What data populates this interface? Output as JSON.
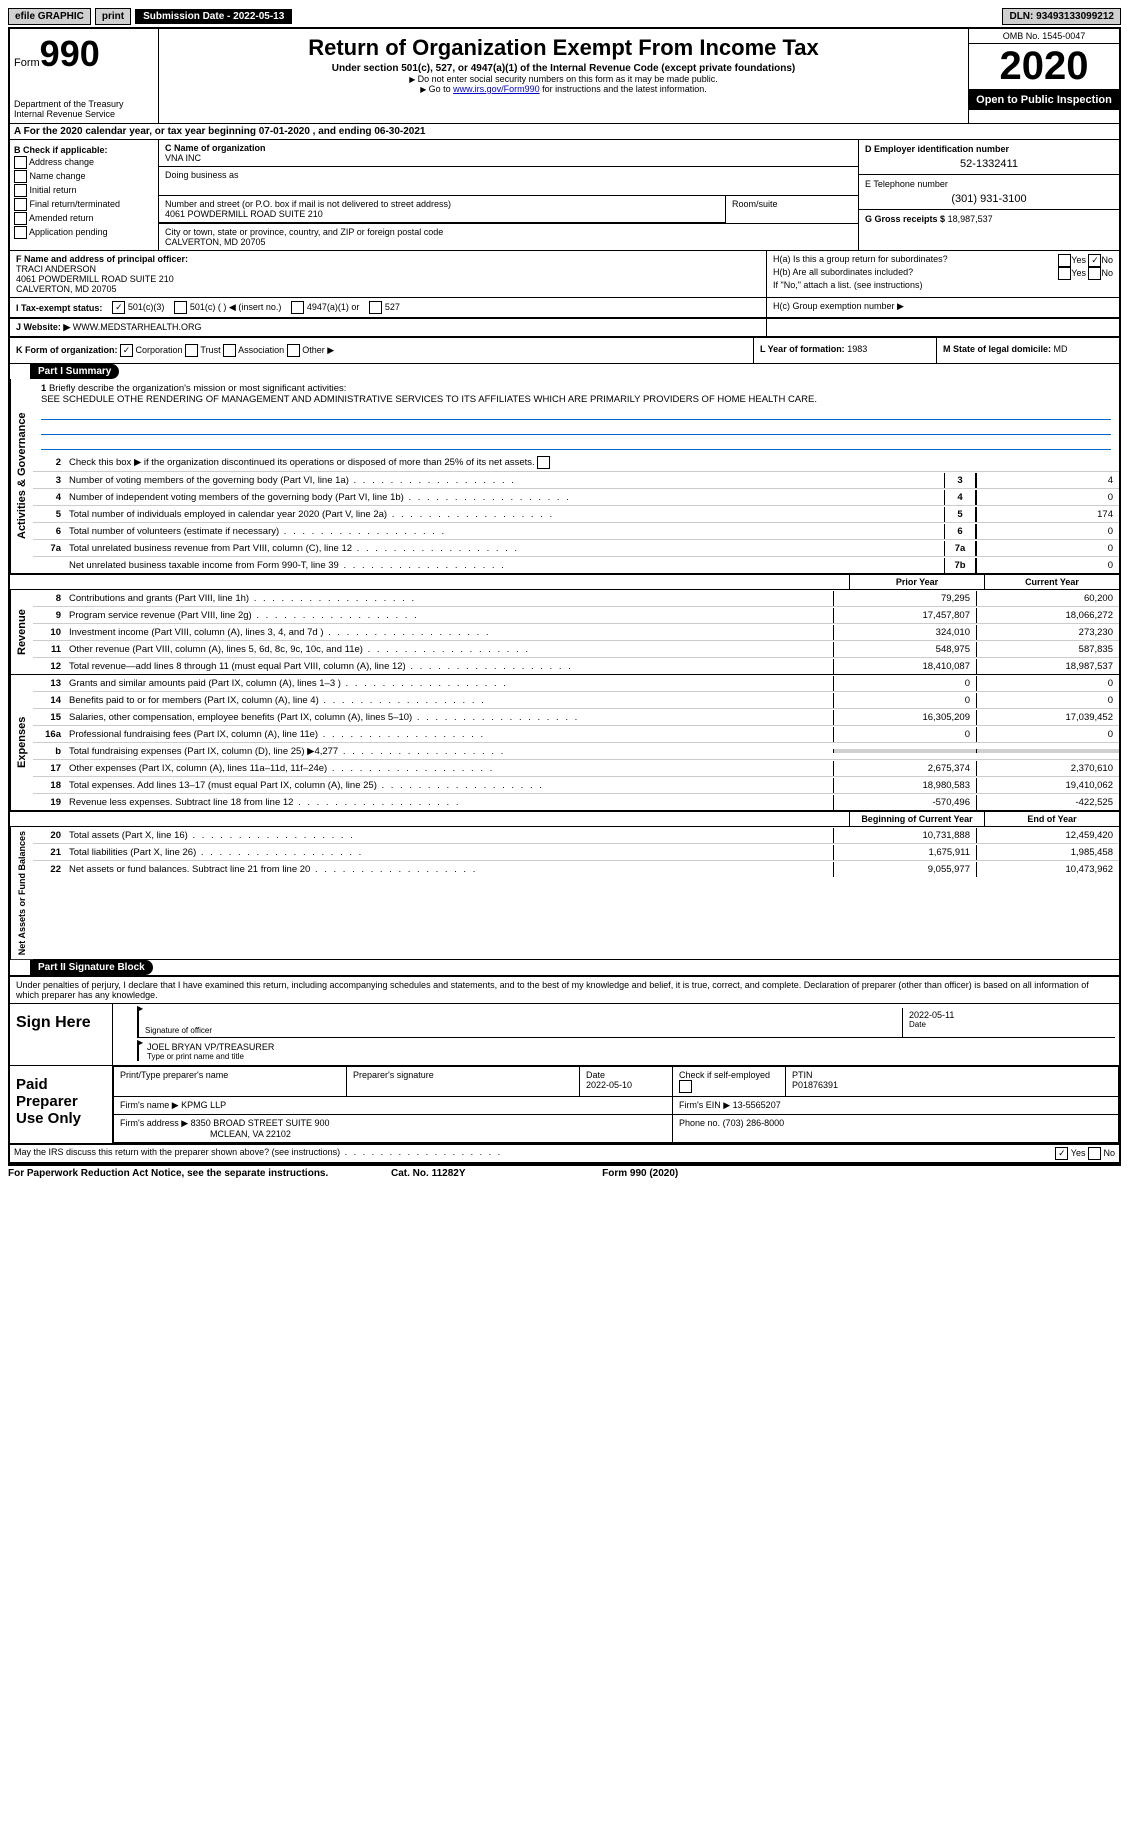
{
  "topbar": {
    "efile_label": "efile GRAPHIC",
    "print_label": "print",
    "submission_label": "Submission Date - 2022-05-13",
    "dln": "DLN: 93493133099212"
  },
  "header": {
    "form_prefix": "Form",
    "form_number": "990",
    "dept1": "Department of the Treasury",
    "dept2": "Internal Revenue Service",
    "title": "Return of Organization Exempt From Income Tax",
    "subtitle": "Under section 501(c), 527, or 4947(a)(1) of the Internal Revenue Code (except private foundations)",
    "note1": "Do not enter social security numbers on this form as it may be made public.",
    "note2_prefix": "Go to ",
    "note2_link": "www.irs.gov/Form990",
    "note2_suffix": " for instructions and the latest information.",
    "omb": "OMB No. 1545-0047",
    "year": "2020",
    "open_public": "Open to Public Inspection"
  },
  "row_a": "A For the 2020 calendar year, or tax year beginning 07-01-2020   , and ending 06-30-2021",
  "section_b": {
    "header": "B Check if applicable:",
    "items": [
      "Address change",
      "Name change",
      "Initial return",
      "Final return/terminated",
      "Amended return",
      "Application pending"
    ]
  },
  "section_c": {
    "name_label": "C Name of organization",
    "name_value": "VNA INC",
    "dba_label": "Doing business as",
    "street_label": "Number and street (or P.O. box if mail is not delivered to street address)",
    "street_value": "4061 POWDERMILL ROAD SUITE 210",
    "suite_label": "Room/suite",
    "city_label": "City or town, state or province, country, and ZIP or foreign postal code",
    "city_value": "CALVERTON, MD  20705"
  },
  "section_de": {
    "d_label": "D Employer identification number",
    "d_value": "52-1332411",
    "e_label": "E Telephone number",
    "e_value": "(301) 931-3100",
    "g_label": "G Gross receipts $",
    "g_value": "18,987,537"
  },
  "section_f": {
    "label": "F  Name and address of principal officer:",
    "name": "TRACI ANDERSON",
    "addr1": "4061 POWDERMILL ROAD SUITE 210",
    "addr2": "CALVERTON, MD  20705"
  },
  "section_h": {
    "ha_label": "H(a)  Is this a group return for subordinates?",
    "hb_label": "H(b)  Are all subordinates included?",
    "hb_note": "If \"No,\" attach a list. (see instructions)",
    "hc_label": "H(c)  Group exemption number ▶"
  },
  "row_i": {
    "label": "I   Tax-exempt status:",
    "opt1": "501(c)(3)",
    "opt2": "501(c) (  ) ◀ (insert no.)",
    "opt3": "4947(a)(1) or",
    "opt4": "527"
  },
  "row_j": {
    "label": "J   Website: ▶",
    "value": "WWW.MEDSTARHEALTH.ORG"
  },
  "row_k": {
    "label": "K Form of organization:",
    "opts": [
      "Corporation",
      "Trust",
      "Association",
      "Other ▶"
    ],
    "l_label": "L Year of formation:",
    "l_value": "1983",
    "m_label": "M State of legal domicile:",
    "m_value": "MD"
  },
  "part1": {
    "header": "Part I      Summary",
    "activities_label": "Activities & Governance",
    "line1_label": "Briefly describe the organization's mission or most significant activities:",
    "line1_text": "SEE SCHEDULE OTHE RENDERING OF MANAGEMENT AND ADMINISTRATIVE SERVICES TO ITS AFFILIATES WHICH ARE PRIMARILY PROVIDERS OF HOME HEALTH CARE.",
    "line2": "Check this box ▶       if the organization discontinued its operations or disposed of more than 25% of its net assets.",
    "lines_ag": [
      {
        "n": "3",
        "d": "Number of voting members of the governing body (Part VI, line 1a)",
        "b": "3",
        "v": "4"
      },
      {
        "n": "4",
        "d": "Number of independent voting members of the governing body (Part VI, line 1b)",
        "b": "4",
        "v": "0"
      },
      {
        "n": "5",
        "d": "Total number of individuals employed in calendar year 2020 (Part V, line 2a)",
        "b": "5",
        "v": "174"
      },
      {
        "n": "6",
        "d": "Total number of volunteers (estimate if necessary)",
        "b": "6",
        "v": "0"
      },
      {
        "n": "7a",
        "d": "Total unrelated business revenue from Part VIII, column (C), line 12",
        "b": "7a",
        "v": "0"
      },
      {
        "n": "",
        "d": "Net unrelated business taxable income from Form 990-T, line 39",
        "b": "7b",
        "v": "0"
      }
    ],
    "revenue_label": "Revenue",
    "expenses_label": "Expenses",
    "netassets_label": "Net Assets or Fund Balances",
    "prior_year": "Prior Year",
    "current_year": "Current Year",
    "lines_rev": [
      {
        "n": "8",
        "d": "Contributions and grants (Part VIII, line 1h)",
        "p": "79,295",
        "c": "60,200"
      },
      {
        "n": "9",
        "d": "Program service revenue (Part VIII, line 2g)",
        "p": "17,457,807",
        "c": "18,066,272"
      },
      {
        "n": "10",
        "d": "Investment income (Part VIII, column (A), lines 3, 4, and 7d )",
        "p": "324,010",
        "c": "273,230"
      },
      {
        "n": "11",
        "d": "Other revenue (Part VIII, column (A), lines 5, 6d, 8c, 9c, 10c, and 11e)",
        "p": "548,975",
        "c": "587,835"
      },
      {
        "n": "12",
        "d": "Total revenue—add lines 8 through 11 (must equal Part VIII, column (A), line 12)",
        "p": "18,410,087",
        "c": "18,987,537"
      }
    ],
    "lines_exp": [
      {
        "n": "13",
        "d": "Grants and similar amounts paid (Part IX, column (A), lines 1–3 )",
        "p": "0",
        "c": "0"
      },
      {
        "n": "14",
        "d": "Benefits paid to or for members (Part IX, column (A), line 4)",
        "p": "0",
        "c": "0"
      },
      {
        "n": "15",
        "d": "Salaries, other compensation, employee benefits (Part IX, column (A), lines 5–10)",
        "p": "16,305,209",
        "c": "17,039,452"
      },
      {
        "n": "16a",
        "d": "Professional fundraising fees (Part IX, column (A), line 11e)",
        "p": "0",
        "c": "0"
      },
      {
        "n": "b",
        "d": "Total fundraising expenses (Part IX, column (D), line 25) ▶4,277",
        "p": "",
        "c": "",
        "shaded": true
      },
      {
        "n": "17",
        "d": "Other expenses (Part IX, column (A), lines 11a–11d, 11f–24e)",
        "p": "2,675,374",
        "c": "2,370,610"
      },
      {
        "n": "18",
        "d": "Total expenses. Add lines 13–17 (must equal Part IX, column (A), line 25)",
        "p": "18,980,583",
        "c": "19,410,062"
      },
      {
        "n": "19",
        "d": "Revenue less expenses. Subtract line 18 from line 12",
        "p": "-570,496",
        "c": "-422,525"
      }
    ],
    "beg_year": "Beginning of Current Year",
    "end_year": "End of Year",
    "lines_na": [
      {
        "n": "20",
        "d": "Total assets (Part X, line 16)",
        "p": "10,731,888",
        "c": "12,459,420"
      },
      {
        "n": "21",
        "d": "Total liabilities (Part X, line 26)",
        "p": "1,675,911",
        "c": "1,985,458"
      },
      {
        "n": "22",
        "d": "Net assets or fund balances. Subtract line 21 from line 20",
        "p": "9,055,977",
        "c": "10,473,962"
      }
    ]
  },
  "part2": {
    "header": "Part II     Signature Block",
    "jurat": "Under penalties of perjury, I declare that I have examined this return, including accompanying schedules and statements, and to the best of my knowledge and belief, it is true, correct, and complete. Declaration of preparer (other than officer) is based on all information of which preparer has any knowledge.",
    "sign_here": "Sign Here",
    "sig_officer_label": "Signature of officer",
    "sig_date_label": "Date",
    "sig_date_value": "2022-05-11",
    "officer_name": "JOEL BRYAN  VP/TREASURER",
    "officer_name_label": "Type or print name and title",
    "paid_prep": "Paid Preparer Use Only",
    "prep_name_label": "Print/Type preparer's name",
    "prep_sig_label": "Preparer's signature",
    "prep_date_label": "Date",
    "prep_date_value": "2022-05-10",
    "prep_check_label": "Check        if self-employed",
    "ptin_label": "PTIN",
    "ptin_value": "P01876391",
    "firm_name_label": "Firm's name    ▶",
    "firm_name_value": "KPMG LLP",
    "firm_ein_label": "Firm's EIN ▶",
    "firm_ein_value": "13-5565207",
    "firm_addr_label": "Firm's address ▶",
    "firm_addr1": "8350 BROAD STREET SUITE 900",
    "firm_addr2": "MCLEAN, VA  22102",
    "phone_label": "Phone no.",
    "phone_value": "(703) 286-8000",
    "irs_discuss": "May the IRS discuss this return with the preparer shown above? (see instructions)"
  },
  "footer": {
    "left": "For Paperwork Reduction Act Notice, see the separate instructions.",
    "mid": "Cat. No. 11282Y",
    "right": "Form 990 (2020)"
  }
}
